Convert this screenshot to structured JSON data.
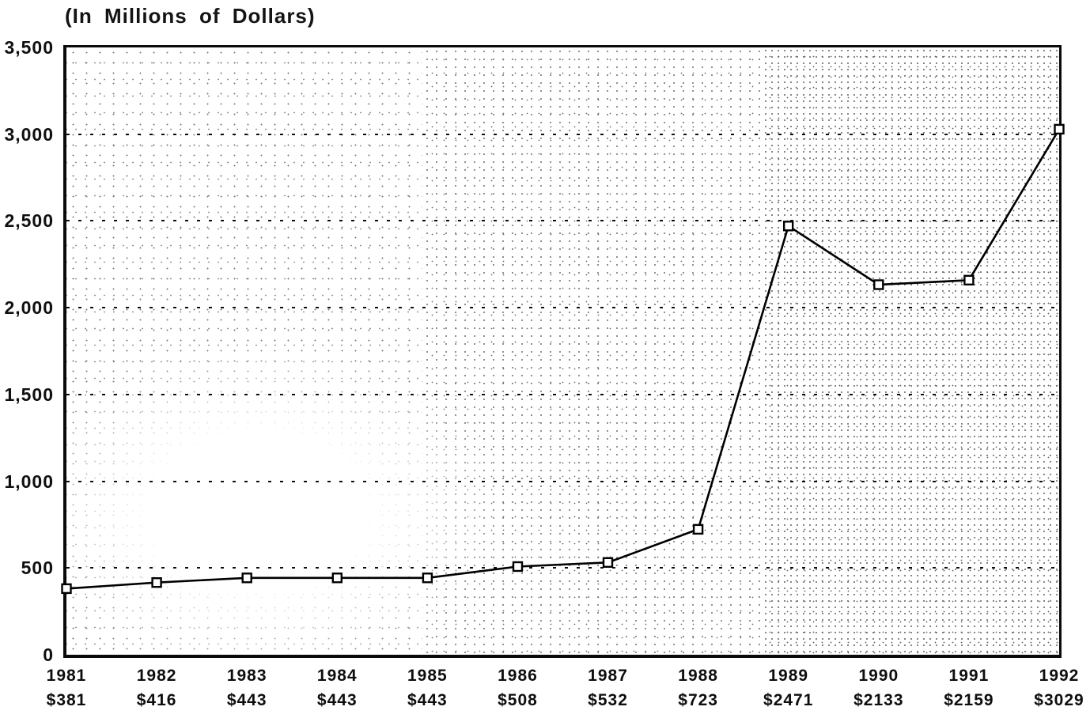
{
  "chart_data": {
    "type": "line",
    "title": "(In Millions of Dollars)",
    "categories": [
      "1981",
      "1982",
      "1983",
      "1984",
      "1985",
      "1986",
      "1987",
      "1988",
      "1989",
      "1990",
      "1991",
      "1992"
    ],
    "values": [
      381,
      416,
      443,
      443,
      443,
      508,
      532,
      723,
      2471,
      2133,
      2159,
      3029
    ],
    "value_labels": [
      "$381",
      "$416",
      "$443",
      "$443",
      "$443",
      "$508",
      "$532",
      "$723",
      "$2471",
      "$2133",
      "$2159",
      "$3029"
    ],
    "xlabel": "",
    "ylabel": "",
    "ylim": [
      0,
      3500
    ],
    "ytick_interval": 500,
    "ytick_labels": [
      "0",
      "500",
      "1,000",
      "1,500",
      "2,000",
      "2,500",
      "3,000",
      "3,500"
    ],
    "grid": "horizontal dashed lines at every 500",
    "legend": "none",
    "marker": "open-square",
    "colors": {
      "line": "#000000",
      "marker_fill": "#ffffff",
      "grid": "#0d0d0d",
      "text": "#0e0e0e",
      "plot_background": "stippled halftone on white"
    }
  }
}
